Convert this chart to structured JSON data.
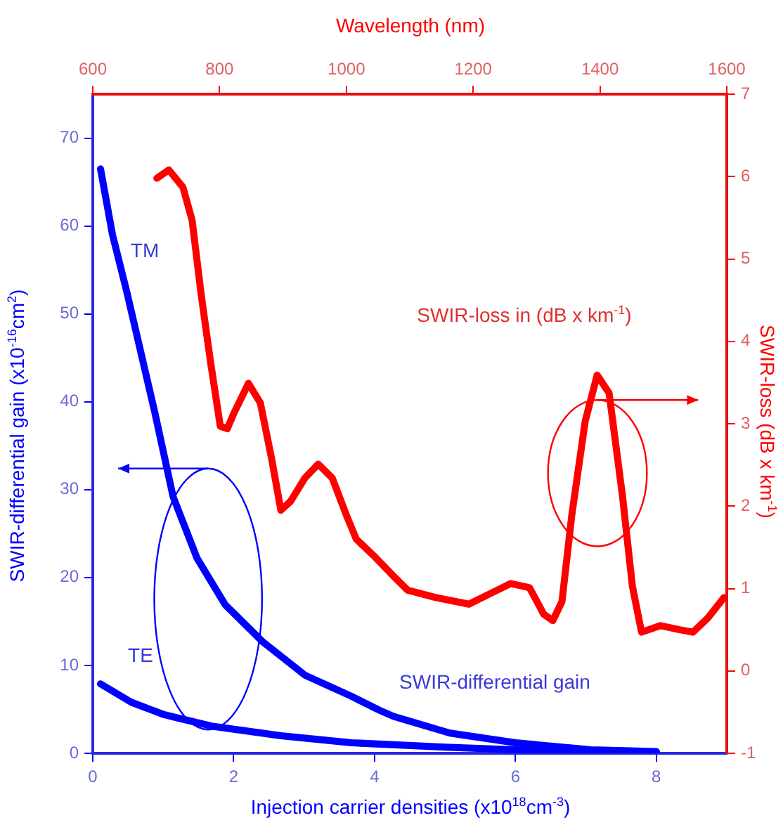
{
  "chart_data": {
    "type": "line",
    "xlabel": "Injection carrier densities (x10$^{18}$cm$^{-3}$)",
    "ylabel": "SWIR-differential gain (x10$^{-16}$cm$^{2}$)",
    "y2label": "SWIR-loss (dB x km$^{-1}$)",
    "x2label": "Wavelength (nm)",
    "xlim": [
      0,
      9
    ],
    "xticks": [
      0,
      2,
      4,
      6,
      8
    ],
    "ylim": [
      0,
      75
    ],
    "yticks": [
      0,
      10,
      20,
      30,
      40,
      50,
      60,
      70
    ],
    "y2lim": [
      -1,
      7
    ],
    "y2ticks": [
      -1,
      0,
      1,
      2,
      3,
      4,
      5,
      6,
      7
    ],
    "x2lim": [
      600,
      1600
    ],
    "x2ticks": [
      600,
      800,
      1000,
      1200,
      1400,
      1600
    ],
    "grid": false,
    "legend": false,
    "marker": "none",
    "line_style": "solid",
    "annotations": [
      "TM",
      "TE",
      "SWIR-differential gain",
      "SWIR-loss in (dB x km$^{-1}$)"
    ],
    "series": [
      {
        "color": "#0000ff",
        "x": [
          0.11,
          0.28,
          0.48,
          0.68,
          0.88,
          1.14,
          1.48,
          1.88,
          2.41,
          3.01,
          3.67,
          4.07,
          4.27,
          5.07,
          6.0,
          7.07,
          8.0
        ],
        "values": [
          66.5,
          59.0,
          52.6,
          45.7,
          38.8,
          29.2,
          22.2,
          16.9,
          12.7,
          8.9,
          6.5,
          4.9,
          4.2,
          2.3,
          1.2,
          0.4,
          0.2
        ]
      },
      {
        "color": "#0000ff",
        "x": [
          0.11,
          0.55,
          1.01,
          1.68,
          2.67,
          3.67,
          5.0,
          6.0,
          7.0,
          8.0
        ],
        "values": [
          7.9,
          5.8,
          4.4,
          3.1,
          2.0,
          1.2,
          0.7,
          0.4,
          0.2,
          0.1
        ]
      },
      {
        "color": "#ff0000",
        "axis": "y2",
        "x": [
          0.91,
          1.08,
          1.28,
          1.41,
          1.54,
          1.67,
          1.81,
          1.91,
          2.01,
          2.21,
          2.38,
          2.54,
          2.67,
          2.81,
          3.01,
          3.2,
          3.4,
          3.6,
          3.74,
          4.01,
          4.27,
          4.47,
          4.87,
          5.34,
          5.67,
          5.93,
          6.2,
          6.4,
          6.53,
          6.66,
          6.8,
          6.99,
          7.16,
          7.33,
          7.52,
          7.66,
          7.79,
          8.06,
          8.33,
          8.52,
          8.73,
          8.96
        ],
        "values": [
          5.98,
          6.08,
          5.87,
          5.47,
          4.56,
          3.76,
          2.97,
          2.94,
          3.14,
          3.49,
          3.25,
          2.57,
          1.95,
          2.06,
          2.34,
          2.51,
          2.34,
          1.89,
          1.6,
          1.38,
          1.15,
          0.98,
          0.89,
          0.81,
          0.95,
          1.06,
          1.01,
          0.69,
          0.61,
          0.84,
          1.89,
          3.03,
          3.59,
          3.37,
          2.12,
          1.03,
          0.47,
          0.55,
          0.5,
          0.47,
          0.64,
          0.89
        ]
      }
    ]
  }
}
